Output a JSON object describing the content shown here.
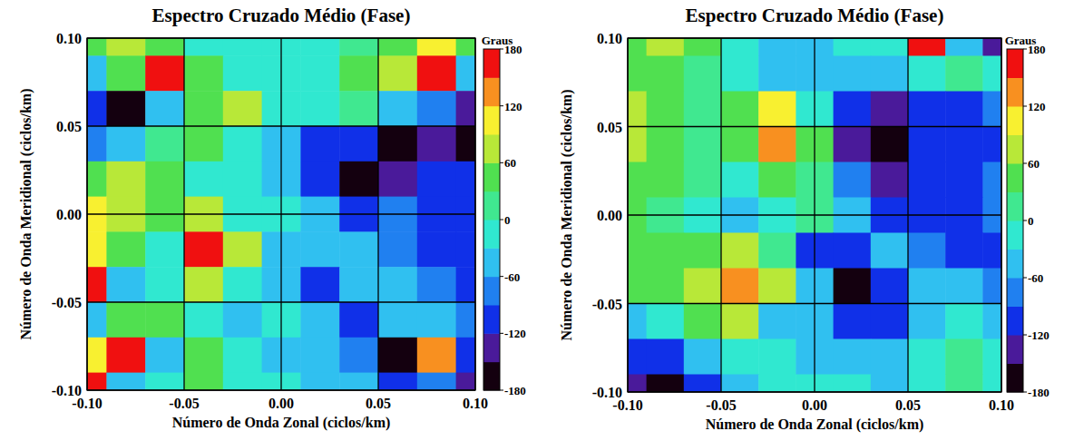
{
  "chart_data": [
    {
      "type": "heatmap",
      "title": "Espectro Cruzado Médio (Fase)",
      "x_label": "Número de Onda Zonal (ciclos/km)",
      "y_label": "Número de Onda Meridional (ciclos/km)",
      "x": [
        -0.1,
        -0.08,
        -0.06,
        -0.04,
        -0.02,
        0,
        0.02,
        0.04,
        0.06,
        0.08,
        0.1
      ],
      "y": [
        0.1,
        0.08,
        0.06,
        0.04,
        0.02,
        0,
        -0.02,
        -0.04,
        -0.06,
        -0.08,
        -0.1
      ],
      "cells": [
        [
          30,
          60,
          30,
          -30,
          -20,
          -30,
          -20,
          20,
          30,
          90,
          30
        ],
        [
          -40,
          40,
          150,
          40,
          -10,
          -20,
          -20,
          30,
          80,
          150,
          -40
        ],
        [
          -120,
          -170,
          -40,
          30,
          70,
          -30,
          -30,
          20,
          -40,
          -90,
          -150
        ],
        [
          -90,
          -40,
          10,
          40,
          -20,
          -60,
          -100,
          -120,
          -170,
          -130,
          -170
        ],
        [
          30,
          60,
          30,
          -20,
          -30,
          -60,
          -100,
          -170,
          -150,
          -120,
          -110
        ],
        [
          90,
          70,
          40,
          60,
          -10,
          -30,
          -60,
          -110,
          -90,
          -100,
          -110
        ],
        [
          90,
          50,
          -20,
          150,
          80,
          -40,
          -60,
          -60,
          -90,
          -110,
          -120
        ],
        [
          150,
          -60,
          -20,
          60,
          -10,
          -40,
          -100,
          -60,
          -40,
          -80,
          -100
        ],
        [
          -50,
          30,
          30,
          -20,
          -60,
          -30,
          -60,
          -120,
          -40,
          -50,
          -70
        ],
        [
          90,
          160,
          -40,
          30,
          -20,
          -40,
          -60,
          -80,
          -170,
          120,
          -120
        ],
        [
          150,
          -60,
          -20,
          30,
          -20,
          -30,
          -50,
          -60,
          -100,
          -90,
          -140
        ]
      ],
      "xlim": [
        -0.1,
        0.1
      ],
      "ylim": [
        -0.1,
        0.1
      ],
      "xticks": [
        {
          "value": -0.1,
          "label": "-0.10"
        },
        -0.05,
        {
          "value": 0,
          "label": "0.00"
        },
        0.05,
        {
          "value": 0.1,
          "label": "0.10"
        }
      ],
      "yticks": [
        {
          "value": -0.1,
          "label": "-0.10"
        },
        -0.05,
        {
          "value": 0,
          "label": "0.00"
        },
        0.05,
        {
          "value": 0.1,
          "label": "0.10"
        }
      ],
      "grid": true,
      "colorbar_label": "Graus",
      "colorbar_range": [
        -180,
        180
      ],
      "colorbar_ticks": [
        -180,
        -120,
        -60,
        0,
        60,
        120,
        180
      ]
    },
    {
      "type": "heatmap",
      "title": "Espectro Cruzado Médio (Fase)",
      "x_label": "Número de Onda Zonal (ciclos/km)",
      "y_label": "Número de Onda Meridional (ciclos/km)",
      "x": [
        -0.1,
        -0.08,
        -0.06,
        -0.04,
        -0.02,
        0,
        0.02,
        0.04,
        0.06,
        0.08,
        0.1
      ],
      "y": [
        0.1,
        0.08,
        0.06,
        0.04,
        0.02,
        0,
        -0.02,
        -0.04,
        -0.06,
        -0.08,
        -0.1
      ],
      "cells": [
        [
          30,
          60,
          30,
          -20,
          -40,
          -40,
          -20,
          -20,
          150,
          -60,
          -150
        ],
        [
          40,
          40,
          20,
          -20,
          -40,
          -60,
          -40,
          -40,
          -30,
          20,
          -30
        ],
        [
          70,
          40,
          20,
          40,
          90,
          -20,
          -120,
          -140,
          -110,
          -100,
          -90
        ],
        [
          70,
          40,
          20,
          40,
          130,
          30,
          -130,
          -170,
          -110,
          -100,
          -100
        ],
        [
          50,
          40,
          20,
          -20,
          40,
          20,
          -90,
          -130,
          -110,
          -100,
          -90
        ],
        [
          40,
          20,
          -20,
          -40,
          -30,
          0,
          -60,
          -100,
          -120,
          -110,
          -90
        ],
        [
          50,
          30,
          40,
          70,
          20,
          -100,
          -120,
          -40,
          -80,
          -100,
          -100
        ],
        [
          30,
          40,
          80,
          130,
          70,
          -60,
          -170,
          -100,
          -50,
          -60,
          -70
        ],
        [
          -40,
          -20,
          30,
          80,
          -40,
          -60,
          -110,
          -100,
          -40,
          -30,
          -40
        ],
        [
          -100,
          -120,
          -60,
          -20,
          -30,
          -40,
          -60,
          -50,
          -20,
          20,
          -20
        ],
        [
          -130,
          -170,
          -100,
          -50,
          -30,
          -20,
          -20,
          -40,
          -20,
          20,
          -30
        ]
      ],
      "xlim": [
        -0.1,
        0.1
      ],
      "ylim": [
        -0.1,
        0.1
      ],
      "xticks": [
        {
          "value": -0.1,
          "label": "-0.10"
        },
        -0.05,
        {
          "value": 0,
          "label": "0.00"
        },
        0.05,
        {
          "value": 0.1,
          "label": "0.10"
        }
      ],
      "yticks": [
        {
          "value": -0.1,
          "label": "-0.10"
        },
        -0.05,
        {
          "value": 0,
          "label": "0.00"
        },
        0.05,
        {
          "value": 0.1,
          "label": "0.10"
        }
      ],
      "grid": true,
      "colorbar_label": "Graus",
      "colorbar_range": [
        -180,
        180
      ],
      "colorbar_ticks": [
        -180,
        -120,
        -60,
        0,
        60,
        120,
        180
      ]
    }
  ]
}
